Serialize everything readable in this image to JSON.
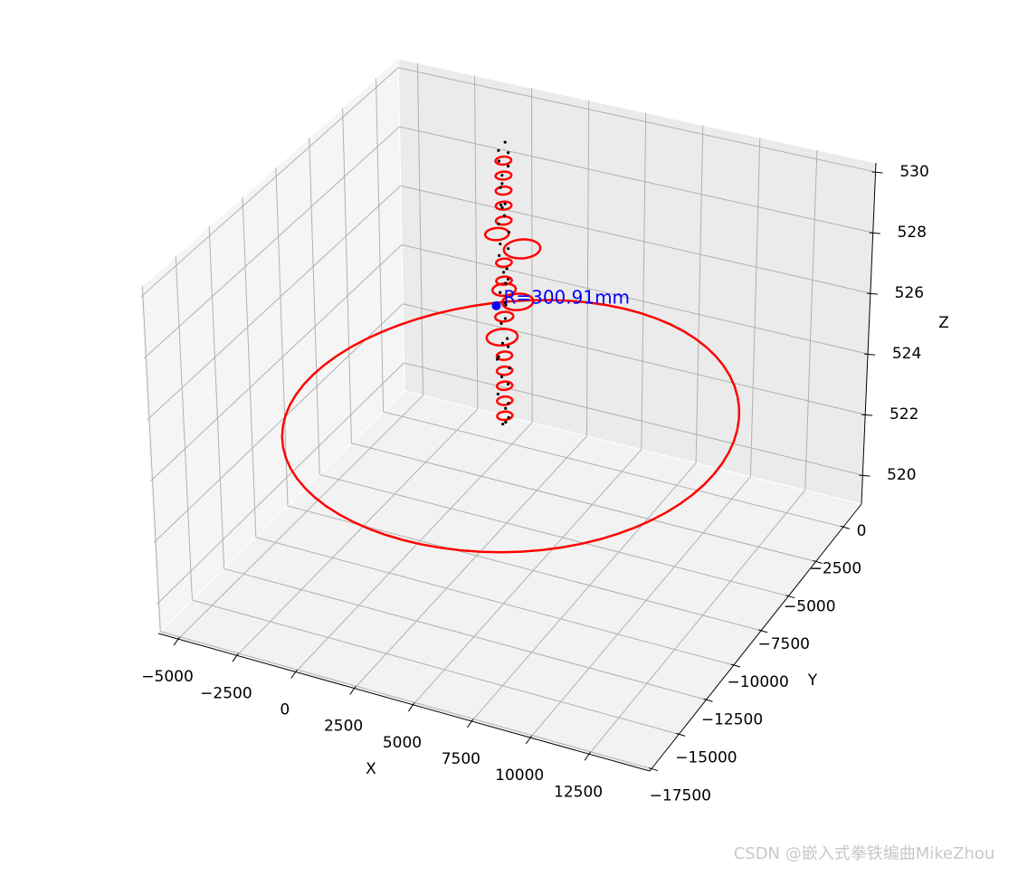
{
  "chart_data": {
    "type": "scatter3d",
    "xlabel": "X",
    "ylabel": "Y",
    "zlabel": "Z",
    "xlim": [
      -5850,
      15080
    ],
    "ylim": [
      -17660,
      1660
    ],
    "zlim": [
      519.05,
      530.3
    ],
    "xticks": [
      {
        "value": -5000,
        "label": "−5000"
      },
      {
        "value": -2500,
        "label": "−2500"
      },
      0,
      2500,
      5000,
      7500,
      10000,
      12500
    ],
    "yticks": [
      {
        "value": -17500,
        "label": "−17500"
      },
      {
        "value": -15000,
        "label": "−15000"
      },
      {
        "value": -12500,
        "label": "−12500"
      },
      {
        "value": -10000,
        "label": "−10000"
      },
      {
        "value": -7500,
        "label": "−7500"
      },
      {
        "value": -5000,
        "label": "−5000"
      },
      {
        "value": -2500,
        "label": "−2500"
      },
      0
    ],
    "zticks": [
      520,
      522,
      524,
      526,
      528,
      530
    ],
    "grid": true,
    "points": {
      "color": "#000000",
      "x": [
        600,
        950,
        780,
        1020,
        640,
        870,
        700,
        990,
        560,
        830,
        720,
        1040,
        610,
        900,
        760,
        980,
        650,
        840,
        700,
        1010,
        590,
        880,
        750,
        970,
        630,
        860,
        710,
        1000,
        580,
        820,
        740,
        950,
        660,
        900,
        700,
        850,
        1000,
        620,
        900,
        680
      ],
      "y": [
        -1800,
        -2200,
        -1900,
        -2100,
        -2250,
        -1850,
        -2050,
        -1950,
        -2150,
        -1750,
        -2000,
        -2200,
        -1900,
        -2100,
        -1800,
        -2250,
        -2050,
        -1950,
        -1850,
        -2150,
        -2000,
        -1800,
        -2200,
        -1900,
        -2100,
        -2050,
        -1950,
        -2250,
        -1850,
        -2150,
        -2000,
        -1900,
        -2100,
        -1800,
        -2200,
        -1950,
        -2050,
        -2150,
        -1850,
        -2000
      ],
      "z": [
        520.6,
        520.9,
        521.2,
        521.5,
        521.8,
        522.0,
        522.3,
        522.6,
        522.9,
        523.2,
        523.4,
        523.7,
        524.0,
        524.3,
        524.6,
        524.9,
        525.1,
        525.4,
        525.7,
        526.0,
        526.3,
        526.5,
        526.8,
        527.1,
        527.4,
        527.7,
        527.9,
        528.2,
        528.5,
        528.8,
        529.0,
        529.3,
        529.5,
        529.7,
        529.9,
        530.1,
        521.0,
        523.0,
        525.5,
        528.0
      ]
    },
    "circles": {
      "color": "#ff0000",
      "items": [
        {
          "center": [
            1000,
            -1650,
            520.6
          ],
          "radius": 9000
        },
        {
          "center": [
            800,
            -2000,
            521.0
          ],
          "radius": 300
        },
        {
          "center": [
            800,
            -2000,
            521.5
          ],
          "radius": 300
        },
        {
          "center": [
            800,
            -2000,
            522.0
          ],
          "radius": 300
        },
        {
          "center": [
            800,
            -2000,
            522.5
          ],
          "radius": 300
        },
        {
          "center": [
            800,
            -2000,
            523.0
          ],
          "radius": 300
        },
        {
          "center": [
            700,
            -2000,
            523.6
          ],
          "radius": 600
        },
        {
          "center": [
            800,
            -2000,
            524.3
          ],
          "radius": 350
        },
        {
          "center": [
            1400,
            -2000,
            524.9
          ],
          "radius": 600
        },
        {
          "center": [
            800,
            -2000,
            525.2
          ],
          "radius": 450
        },
        {
          "center": [
            800,
            -2000,
            525.5
          ],
          "radius": 300
        },
        {
          "center": [
            800,
            -2000,
            526.1
          ],
          "radius": 300
        },
        {
          "center": [
            1600,
            -2000,
            526.7
          ],
          "radius": 700
        },
        {
          "center": [
            500,
            -2000,
            527.0
          ],
          "radius": 450
        },
        {
          "center": [
            800,
            -2000,
            527.5
          ],
          "radius": 300
        },
        {
          "center": [
            800,
            -2000,
            528.0
          ],
          "radius": 300
        },
        {
          "center": [
            800,
            -2000,
            528.5
          ],
          "radius": 300
        },
        {
          "center": [
            800,
            -2000,
            529.0
          ],
          "radius": 300
        },
        {
          "center": [
            800,
            -2000,
            529.5
          ],
          "radius": 300
        }
      ]
    },
    "center": {
      "color": "#0000ff",
      "x": 450,
      "y": -2000,
      "z": 524.6
    },
    "annotation": {
      "text": "R=300.91mm",
      "color": "#0000ff"
    }
  },
  "watermark": "CSDN @嵌入式拳铁编曲MikeZhou"
}
